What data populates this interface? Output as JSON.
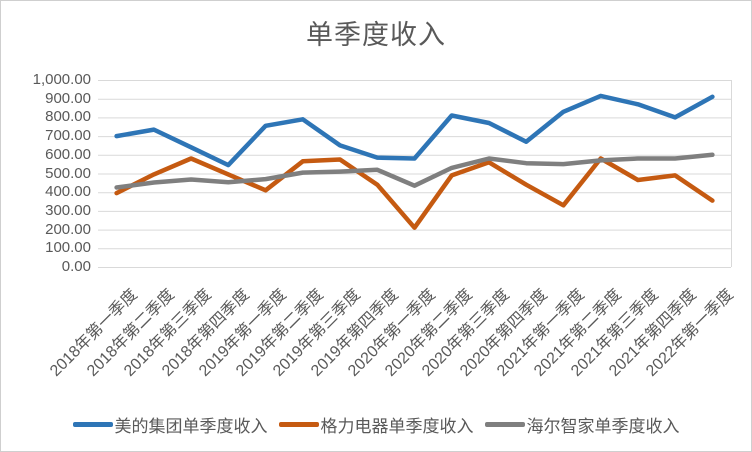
{
  "chart_data": {
    "type": "line",
    "title": "单季度收入",
    "categories": [
      "2018年第一季度",
      "2018年第二季度",
      "2018年第三季度",
      "2018年第四季度",
      "2019年第一季度",
      "2019年第二季度",
      "2019年第三季度",
      "2019年第四季度",
      "2020年第一季度",
      "2020年第二季度",
      "2020年第三季度",
      "2020年第四季度",
      "2021年第一季度",
      "2021年第二季度",
      "2021年第三季度",
      "2021年第四季度",
      "2022年第一季度"
    ],
    "series": [
      {
        "name": "美的集团单季度收入",
        "color": "#2E75B6",
        "values": [
          700,
          735,
          640,
          545,
          755,
          790,
          650,
          585,
          580,
          810,
          770,
          670,
          830,
          915,
          870,
          800,
          910
        ]
      },
      {
        "name": "格力电器单季度收入",
        "color": "#C55A11",
        "values": [
          395,
          495,
          580,
          495,
          410,
          565,
          575,
          440,
          210,
          490,
          560,
          440,
          330,
          580,
          465,
          490,
          355
        ]
      },
      {
        "name": "海尔智家单季度收入",
        "color": "#7F7F7F",
        "values": [
          425,
          452,
          468,
          453,
          470,
          505,
          510,
          520,
          435,
          530,
          580,
          555,
          550,
          570,
          580,
          580,
          600
        ]
      }
    ],
    "xlabel": "",
    "ylabel": "",
    "ylim": [
      0,
      1000
    ],
    "y_tick_step": 100,
    "y_tick_labels": [
      "0.00",
      "100.00",
      "200.00",
      "300.00",
      "400.00",
      "500.00",
      "600.00",
      "700.00",
      "800.00",
      "900.00",
      "1,000.00"
    ],
    "grid": "horizontal",
    "legend_position": "bottom",
    "x_label_rotation_deg": 45
  },
  "colors": {
    "gridline": "#D9D9D9",
    "axis_text": "#595959",
    "title_text": "#595959",
    "chart_border": "#CFCFCF",
    "background": "#FFFFFF"
  }
}
